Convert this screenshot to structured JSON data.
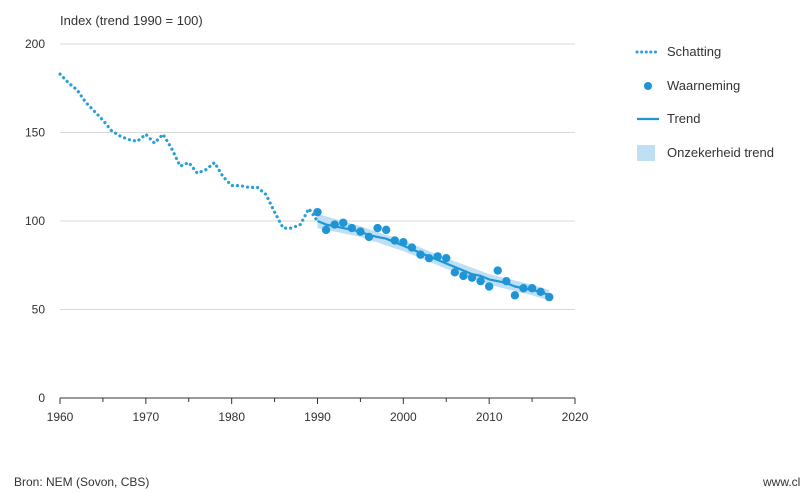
{
  "chart_data": {
    "type": "line",
    "ylabel": "Index (trend 1990 = 100)",
    "xlim": [
      1960,
      2020
    ],
    "ylim": [
      0,
      200
    ],
    "x_ticks": [
      1960,
      1970,
      1980,
      1990,
      2000,
      2010,
      2020
    ],
    "y_ticks": [
      0,
      50,
      100,
      150,
      200
    ],
    "grid": "horizontal",
    "legend_position": "right",
    "series": [
      {
        "name": "Schatting",
        "style": "dotted",
        "color": "#2a9fd8",
        "x": [
          1960,
          1961,
          1962,
          1963,
          1964,
          1965,
          1966,
          1967,
          1968,
          1969,
          1970,
          1971,
          1972,
          1973,
          1974,
          1975,
          1976,
          1977,
          1978,
          1979,
          1980,
          1981,
          1982,
          1983,
          1984,
          1985,
          1986,
          1987,
          1988,
          1989,
          1990
        ],
        "y": [
          183,
          178,
          174,
          167,
          162,
          157,
          151,
          148,
          146,
          145,
          149,
          144,
          149,
          141,
          131,
          133,
          127,
          129,
          133,
          125,
          120,
          120,
          119,
          119,
          115,
          105,
          96,
          96,
          98,
          107,
          100
        ]
      },
      {
        "name": "Waarneming",
        "style": "points",
        "color": "#1f95d6",
        "x": [
          1990,
          1991,
          1992,
          1993,
          1994,
          1995,
          1996,
          1997,
          1998,
          1999,
          2000,
          2001,
          2002,
          2003,
          2004,
          2005,
          2006,
          2007,
          2008,
          2009,
          2010,
          2011,
          2012,
          2013,
          2014,
          2015,
          2016,
          2017
        ],
        "y": [
          105,
          95,
          98,
          99,
          96,
          94,
          91,
          96,
          95,
          89,
          88,
          85,
          81,
          79,
          80,
          79,
          71,
          69,
          68,
          66,
          63,
          72,
          66,
          58,
          62,
          62,
          60,
          57
        ]
      },
      {
        "name": "Trend",
        "style": "solid",
        "color": "#1f95d6",
        "x": [
          1990,
          1991,
          1992,
          1993,
          1994,
          1995,
          1996,
          1997,
          1998,
          1999,
          2000,
          2001,
          2002,
          2003,
          2004,
          2005,
          2006,
          2007,
          2008,
          2009,
          2010,
          2011,
          2012,
          2013,
          2014,
          2015,
          2016,
          2017
        ],
        "y": [
          100,
          98,
          97,
          96,
          95,
          94,
          92,
          91,
          90,
          88,
          86,
          84,
          82,
          80,
          78,
          76,
          74,
          72,
          70,
          69,
          67,
          66,
          65,
          63,
          62,
          61,
          60,
          58
        ]
      },
      {
        "name": "Onzekerheid trend",
        "style": "band",
        "color": "#bfe0f4",
        "x": [
          1990,
          1995,
          2000,
          2005,
          2010,
          2015,
          2017
        ],
        "lower": [
          96,
          91,
          83,
          73,
          64,
          58,
          55
        ],
        "upper": [
          104,
          97,
          89,
          79,
          70,
          64,
          61
        ]
      }
    ]
  },
  "source": "Bron: NEM (Sovon, CBS)",
  "footer_url": "www.cl"
}
